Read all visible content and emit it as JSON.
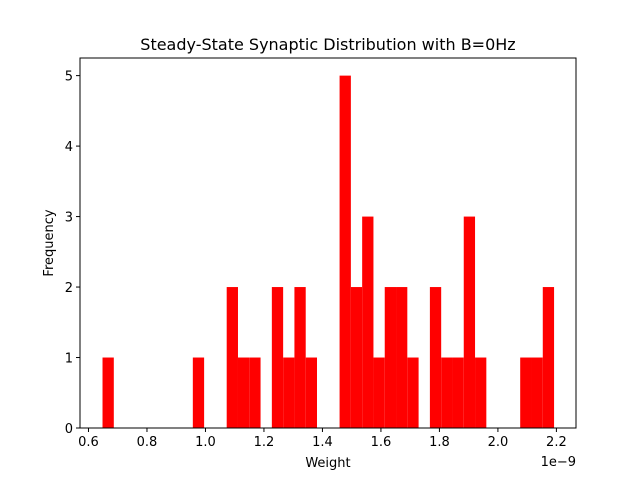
{
  "chart_data": {
    "type": "histogram",
    "title": "Steady-State Synaptic Distribution with B=0Hz",
    "x_label": "Weight",
    "y_label": "Frequency",
    "x_offset_label": "1e−9",
    "bins": [
      0.648,
      0.6866,
      0.7252,
      0.7638,
      0.8024,
      0.841,
      0.8796,
      0.9182,
      0.9568,
      0.9954,
      1.034,
      1.0726,
      1.1112,
      1.1498,
      1.1884,
      1.227,
      1.2656,
      1.3042,
      1.3428,
      1.3814,
      1.42,
      1.4586,
      1.4972,
      1.5358,
      1.5744,
      1.613,
      1.6516,
      1.6902,
      1.7288,
      1.7674,
      1.806,
      1.8446,
      1.8832,
      1.9218,
      1.9604,
      1.999,
      2.0376,
      2.0762,
      2.1148,
      2.1534,
      2.192
    ],
    "values": [
      1,
      0,
      0,
      0,
      0,
      0,
      0,
      0,
      1,
      0,
      0,
      2,
      1,
      1,
      0,
      2,
      1,
      2,
      1,
      0,
      0,
      5,
      2,
      3,
      1,
      2,
      2,
      1,
      0,
      2,
      1,
      1,
      3,
      1,
      0,
      0,
      0,
      1,
      1,
      2
    ],
    "color": "#ff0000",
    "xlim": [
      0.571,
      2.267
    ],
    "xticks": [
      0.6,
      0.8,
      {
        "value": 1.0,
        "label": "1.0"
      },
      1.2,
      1.4,
      1.6,
      1.8,
      {
        "value": 2.0,
        "label": "2.0"
      },
      2.2
    ],
    "ylim": [
      0,
      5.25
    ],
    "yticks": [
      0,
      1,
      2,
      3,
      4,
      5
    ]
  }
}
